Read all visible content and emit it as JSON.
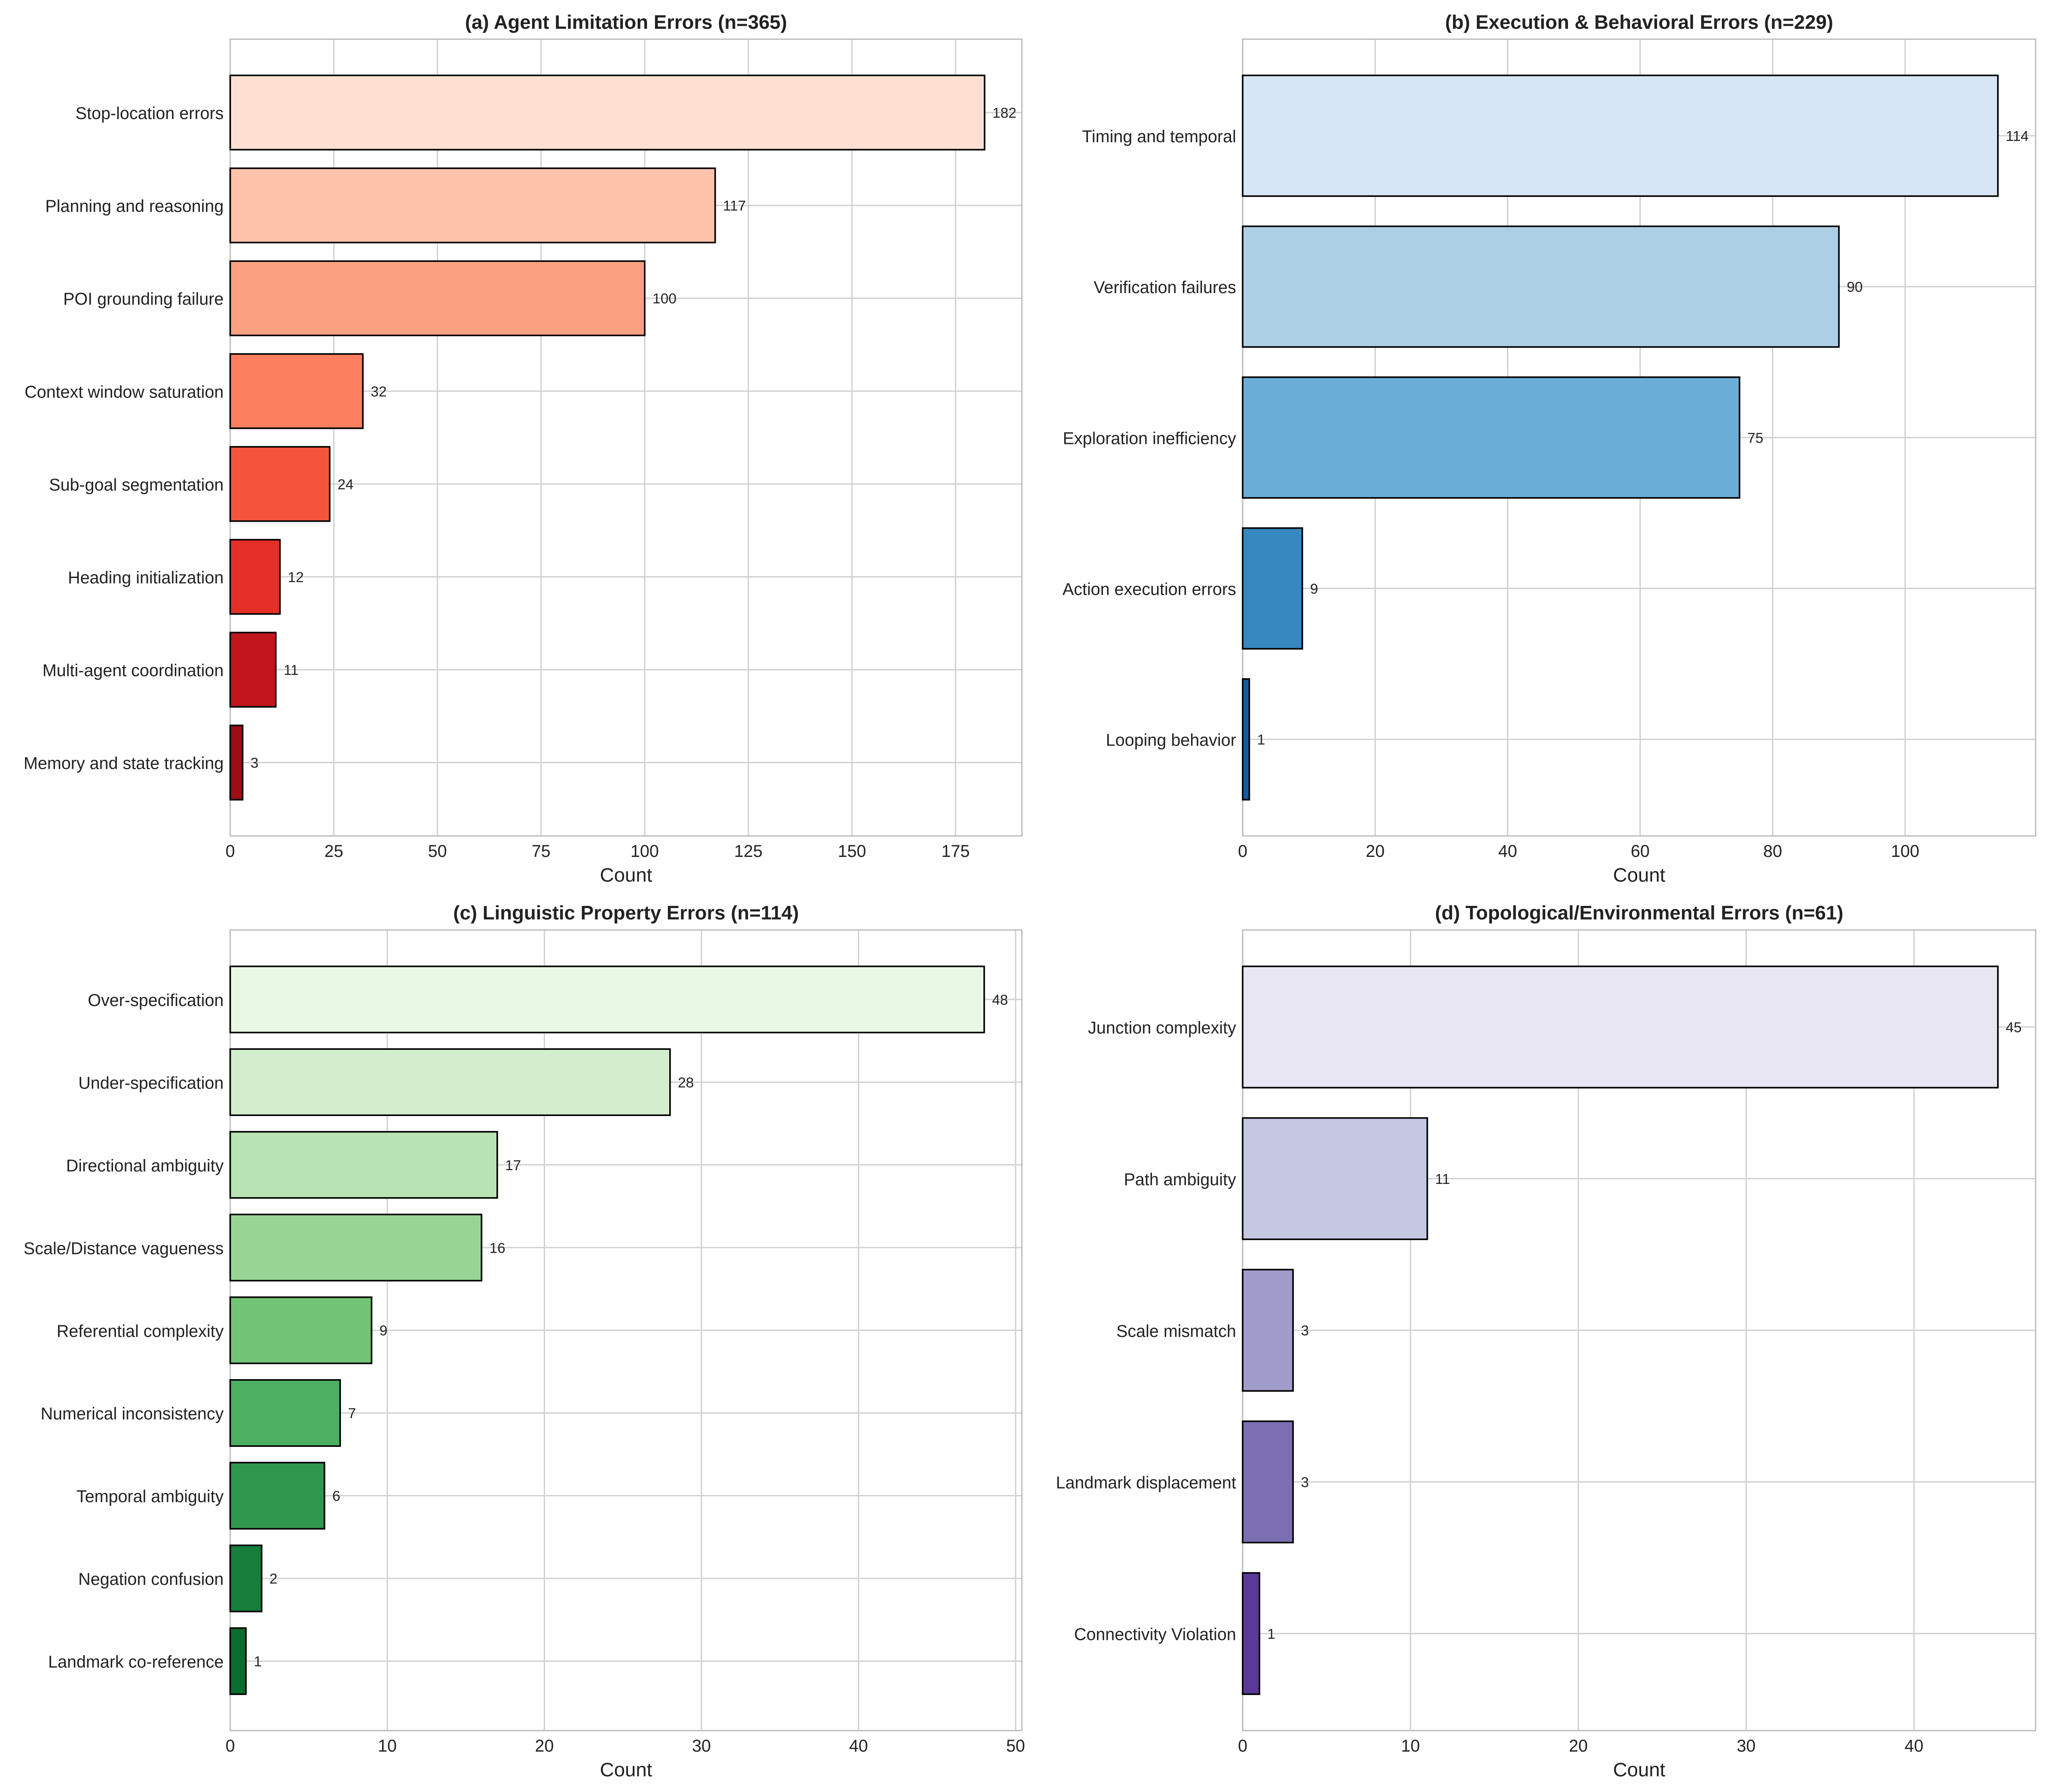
{
  "chart_data": [
    {
      "type": "bar",
      "orientation": "horizontal",
      "title": "(a) Agent Limitation Errors (n=365)",
      "xlabel": "Count",
      "categories": [
        "Stop-location errors",
        "Planning and reasoning",
        "POI grounding failure",
        "Context window saturation",
        "Sub-goal segmentation",
        "Heading initialization",
        "Multi-agent coordination",
        "Memory and state tracking"
      ],
      "values": [
        182,
        117,
        100,
        32,
        24,
        12,
        11,
        3
      ],
      "xticks": [
        0,
        25,
        50,
        75,
        100,
        125,
        150,
        175
      ],
      "xlim": [
        0,
        191
      ],
      "grid": true,
      "colors": [
        "#fee0d2",
        "#fcc2aa",
        "#fca082",
        "#fc7f5f",
        "#f5553c",
        "#e32f27",
        "#c1161b",
        "#9e0d14"
      ]
    },
    {
      "type": "bar",
      "orientation": "horizontal",
      "title": "(b) Execution & Behavioral Errors (n=229)",
      "xlabel": "Count",
      "categories": [
        "Timing and temporal",
        "Verification failures",
        "Exploration inefficiency",
        "Action execution errors",
        "Looping behavior"
      ],
      "values": [
        114,
        90,
        75,
        9,
        1
      ],
      "xticks": [
        0,
        20,
        40,
        60,
        80,
        100
      ],
      "xlim": [
        0,
        119.7
      ],
      "grid": true,
      "colors": [
        "#d6e6f4",
        "#abd0e6",
        "#6aaed6",
        "#3787c0",
        "#105ba4"
      ]
    },
    {
      "type": "bar",
      "orientation": "horizontal",
      "title": "(c) Linguistic Property Errors (n=114)",
      "xlabel": "Count",
      "categories": [
        "Over-specification",
        "Under-specification",
        "Directional ambiguity",
        "Scale/Distance vagueness",
        "Referential complexity",
        "Numerical inconsistency",
        "Temporal ambiguity",
        "Negation confusion",
        "Landmark co-reference"
      ],
      "values": [
        48,
        28,
        17,
        16,
        9,
        7,
        6,
        2,
        1
      ],
      "xticks": [
        0,
        10,
        20,
        30,
        40,
        50
      ],
      "xlim": [
        0,
        50.4
      ],
      "grid": true,
      "colors": [
        "#e9f7e5",
        "#d3eecd",
        "#b8e3b2",
        "#98d594",
        "#73c476",
        "#4bb062",
        "#2f974e",
        "#157f3b",
        "#0a6e2e"
      ]
    },
    {
      "type": "bar",
      "orientation": "horizontal",
      "title": "(d) Topological/Environmental Errors (n=61)",
      "xlabel": "Count",
      "categories": [
        "Junction complexity",
        "Path ambiguity",
        "Scale mismatch",
        "Landmark displacement",
        "Connectivity Violation"
      ],
      "values": [
        45,
        11,
        3,
        3,
        1
      ],
      "xticks": [
        0,
        10,
        20,
        30,
        40
      ],
      "xlim": [
        0,
        47.25
      ],
      "grid": true,
      "colors": [
        "#e8e6f2",
        "#c6c7e1",
        "#a19dcb",
        "#7b6fb2",
        "#5b3a97"
      ]
    }
  ]
}
